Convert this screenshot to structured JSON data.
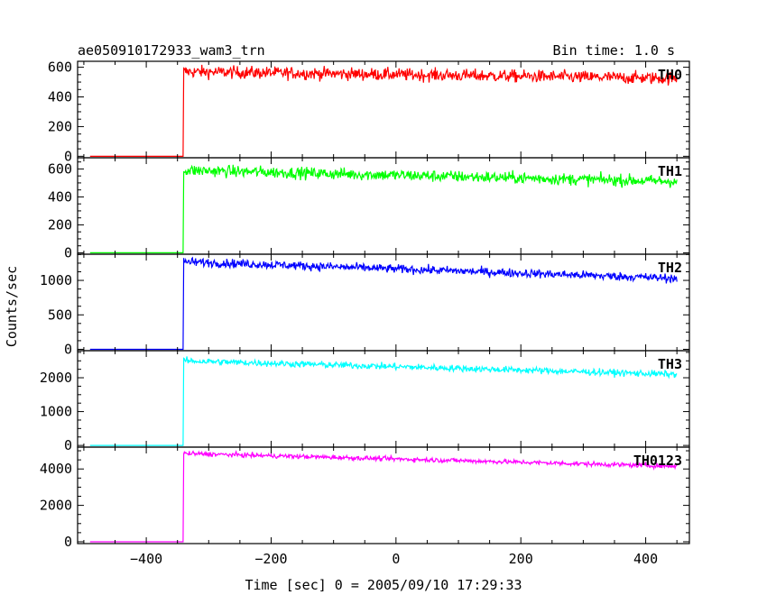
{
  "header": {
    "title": "ae050910172933_wam3_trn",
    "bin_time": "Bin time: 1.0 s"
  },
  "chart_data": {
    "type": "line",
    "title": "ae050910172933_wam3_trn",
    "subtitle": "Bin time: 1.0 s",
    "xlabel": "Time [sec] 0 = 2005/09/10 17:29:33",
    "ylabel": "Counts/sec",
    "xlim": [
      -510,
      470
    ],
    "x_ticks": [
      -400,
      -200,
      0,
      200,
      400
    ],
    "x_tick_labels": [
      "−400",
      "−200",
      "0",
      "200",
      "400"
    ],
    "x_start": -490,
    "x_end": 450,
    "onset_x": -340,
    "grid": false,
    "series": [
      {
        "name": "TH0",
        "color": "#ff0000",
        "ylim": [
          -10,
          640
        ],
        "y_ticks": [
          0,
          200,
          400,
          600
        ],
        "y_tick_labels": [
          "0",
          "200",
          "400",
          "600"
        ],
        "baseline": 0,
        "peak": 570,
        "end": 525,
        "noise": 30
      },
      {
        "name": "TH1",
        "color": "#00ff00",
        "ylim": [
          -10,
          680
        ],
        "y_ticks": [
          0,
          200,
          400,
          600
        ],
        "y_tick_labels": [
          "0",
          "200",
          "400",
          "600"
        ],
        "baseline": 0,
        "peak": 590,
        "end": 510,
        "noise": 30
      },
      {
        "name": "TH2",
        "color": "#0000ff",
        "ylim": [
          -20,
          1380
        ],
        "y_ticks": [
          0,
          500,
          1000
        ],
        "y_tick_labels": [
          "0",
          "500",
          "1000"
        ],
        "baseline": 0,
        "peak": 1270,
        "end": 1030,
        "noise": 45
      },
      {
        "name": "TH3",
        "color": "#00ffff",
        "ylim": [
          -50,
          2800
        ],
        "y_ticks": [
          0,
          1000,
          2000
        ],
        "y_tick_labels": [
          "0",
          "1000",
          "2000"
        ],
        "baseline": 0,
        "peak": 2500,
        "end": 2100,
        "noise": 70
      },
      {
        "name": "TH0123",
        "color": "#ff00ff",
        "ylim": [
          -100,
          5200
        ],
        "y_ticks": [
          0,
          2000,
          4000
        ],
        "y_tick_labels": [
          "0",
          "2000",
          "4000"
        ],
        "baseline": 0,
        "peak": 4850,
        "end": 4150,
        "noise": 90
      }
    ]
  }
}
